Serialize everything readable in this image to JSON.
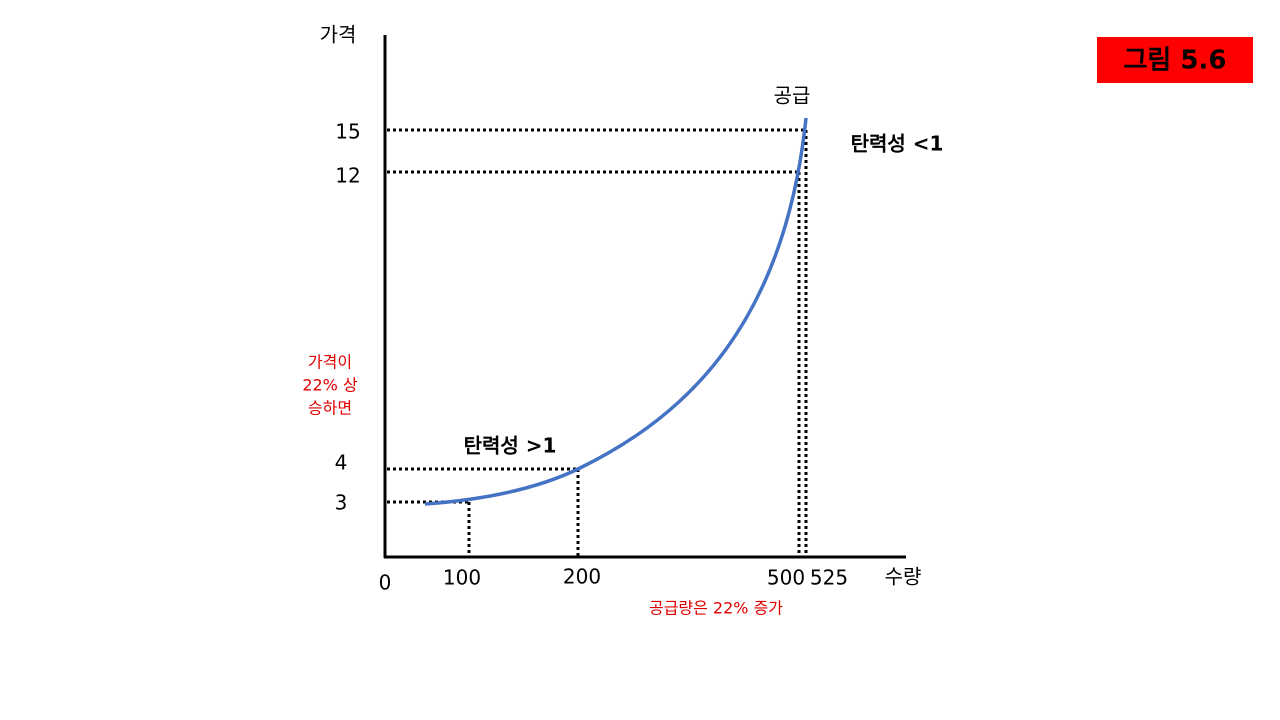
{
  "figure_label": "그림 5.6",
  "axes": {
    "y_label": "가격",
    "x_label": "수량",
    "origin": "0"
  },
  "y_ticks": [
    "15",
    "12",
    "4",
    "3"
  ],
  "x_ticks": [
    "100",
    "200",
    "500",
    "525"
  ],
  "curve_label": "공급",
  "annotations": {
    "elastic_high": "탄력성 <1",
    "elastic_low": "탄력성 >1",
    "price_note": [
      "가격이",
      "22% 상",
      "승하면"
    ],
    "quantity_note": "공급량은 22% 증가"
  }
}
